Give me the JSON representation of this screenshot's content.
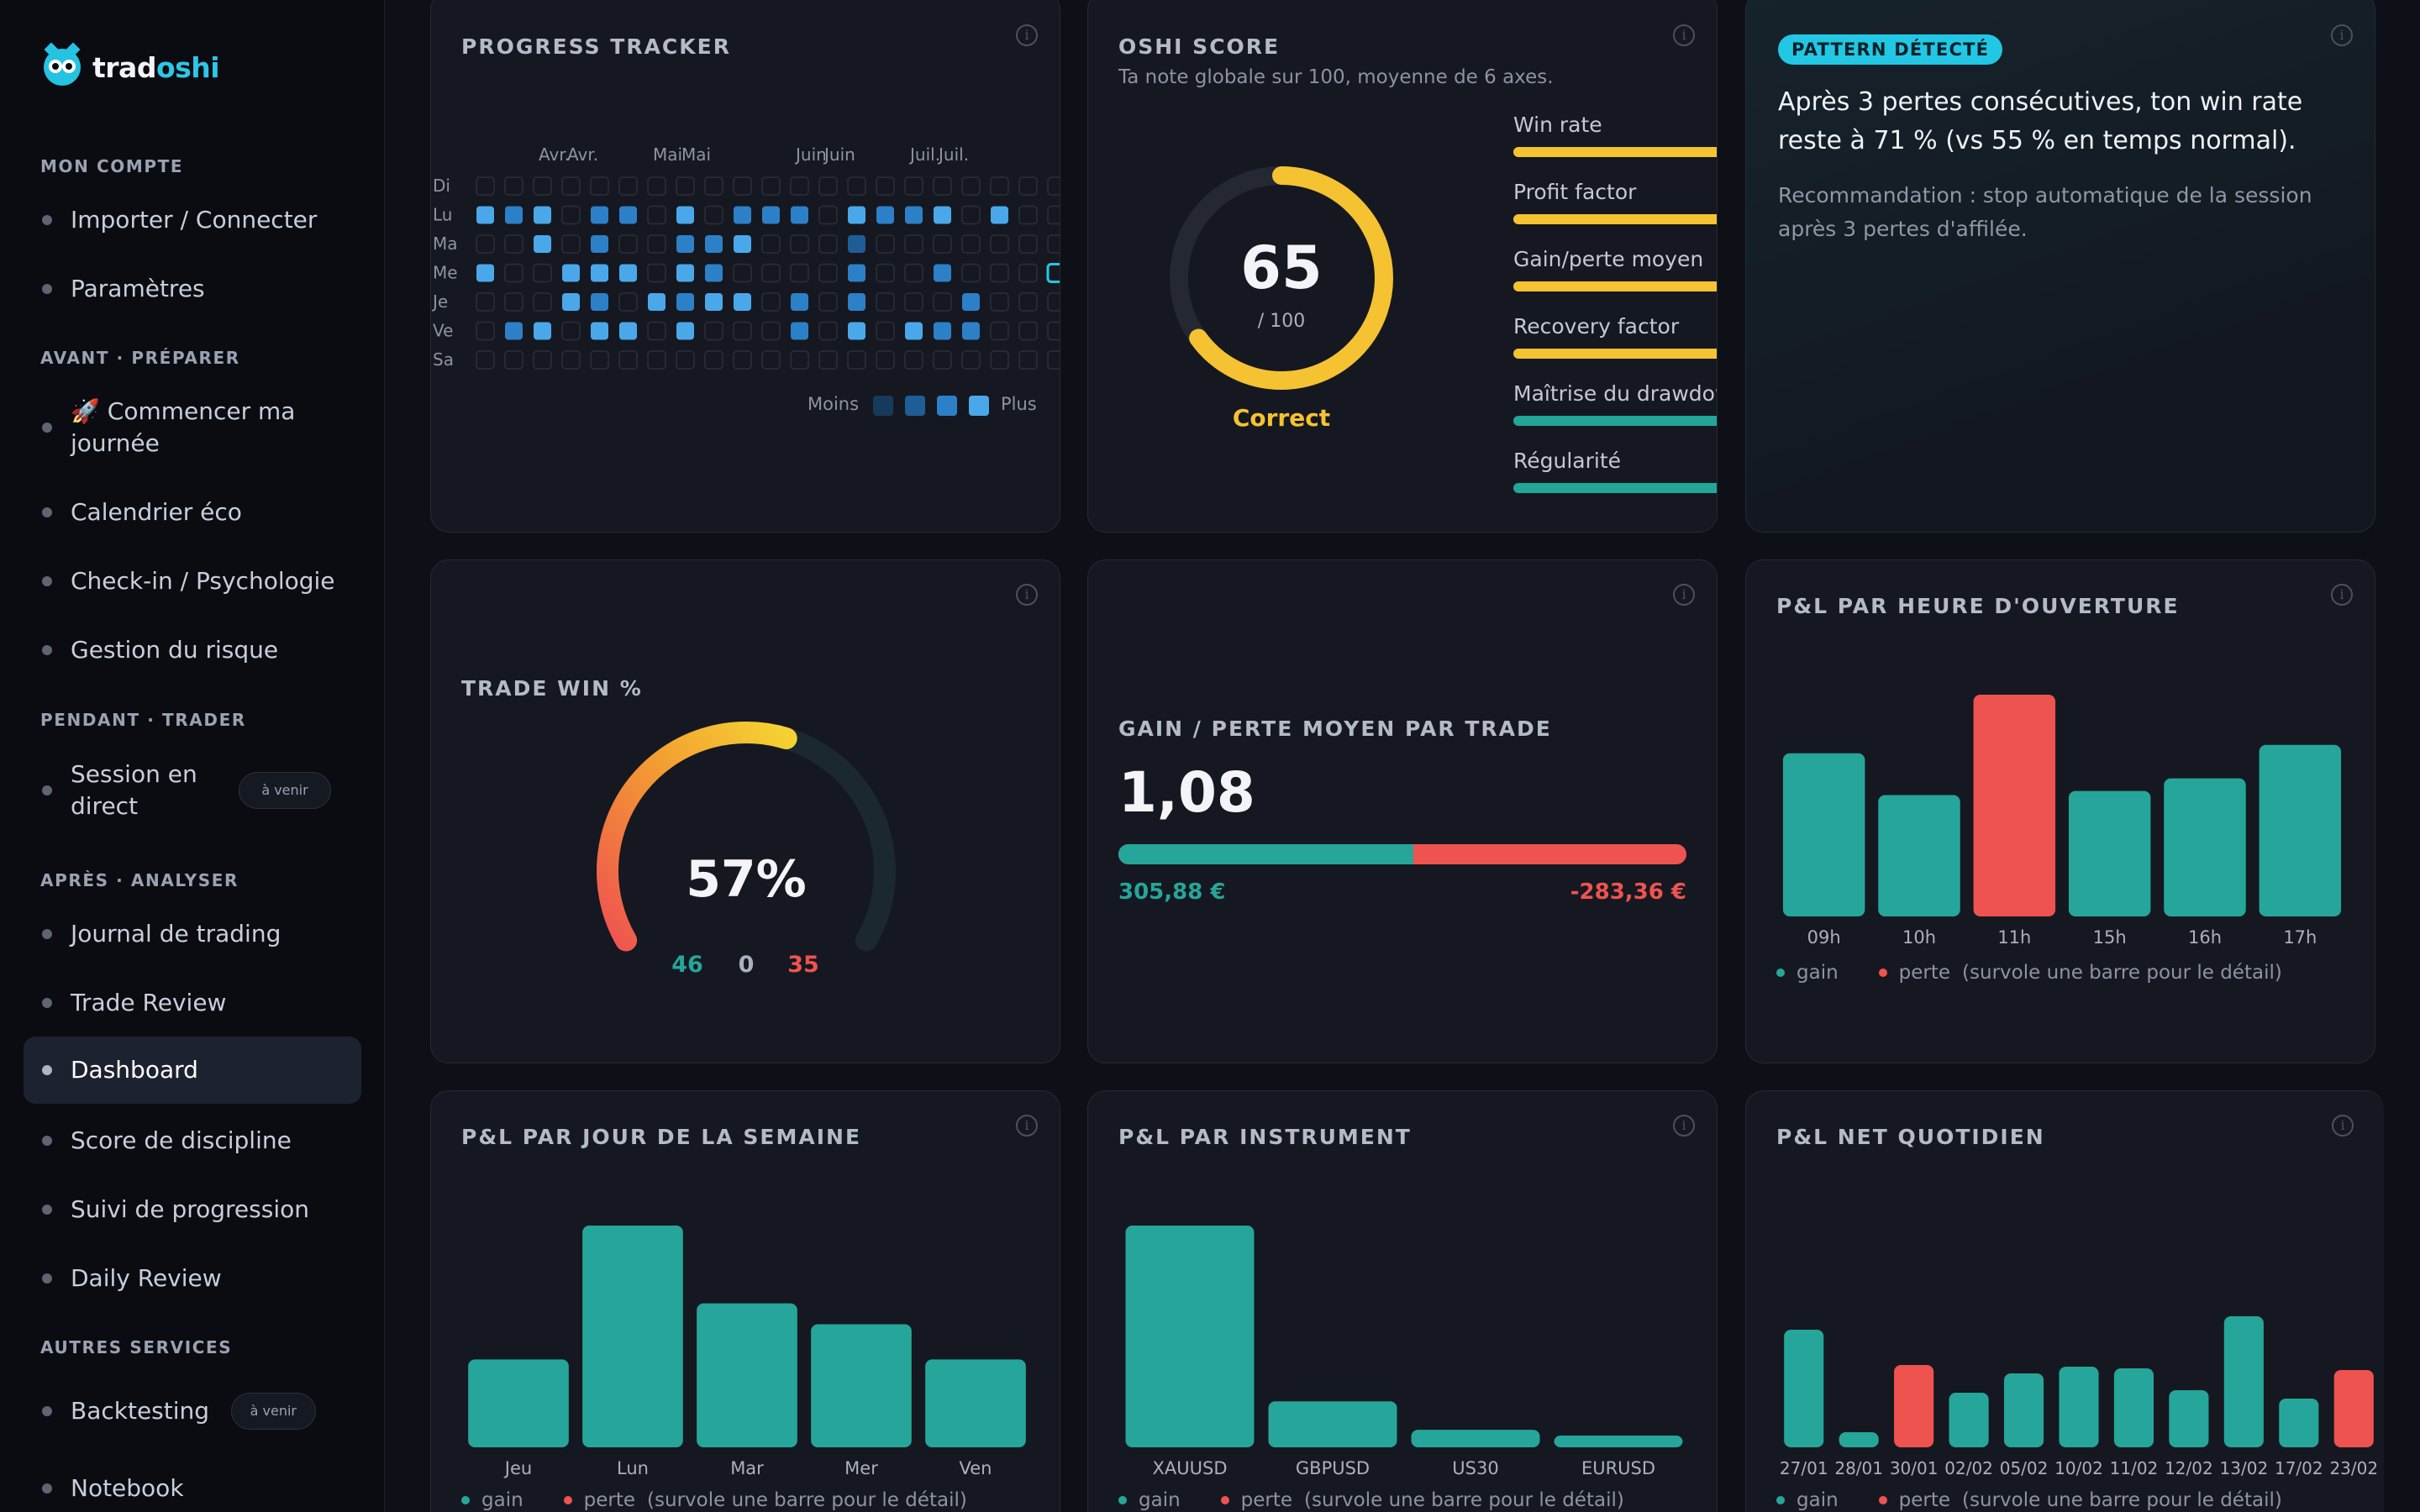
{
  "brand": {
    "name_part1": "trad",
    "name_part2": "oshi"
  },
  "sidebar": {
    "sections": [
      {
        "title": "MON COMPTE",
        "items": [
          {
            "label": "Importer / Connecter"
          },
          {
            "label": "Paramètres"
          }
        ]
      },
      {
        "title": "AVANT · PRÉPARER",
        "items": [
          {
            "label": "🚀 Commencer ma journée"
          },
          {
            "label": "Calendrier éco"
          },
          {
            "label": "Check-in / Psychologie"
          },
          {
            "label": "Gestion du risque"
          }
        ]
      },
      {
        "title": "PENDANT · TRADER",
        "items": [
          {
            "label": "Session en direct",
            "badge": "à venir"
          }
        ]
      },
      {
        "title": "APRÈS · ANALYSER",
        "items": [
          {
            "label": "Journal de trading"
          },
          {
            "label": "Trade Review"
          },
          {
            "label": "Dashboard",
            "active": true
          },
          {
            "label": "Score de discipline"
          },
          {
            "label": "Suivi de progression"
          },
          {
            "label": "Daily Review"
          }
        ]
      },
      {
        "title": "AUTRES SERVICES",
        "items": [
          {
            "label": "Backtesting",
            "badge": "à venir"
          },
          {
            "label": "Notebook"
          }
        ]
      }
    ]
  },
  "progress_tracker": {
    "title": "PROGRESS TRACKER",
    "months": [
      "Avr.",
      "Avr.",
      "Mai",
      "Mai",
      "Juin",
      "Juin",
      "Juil.",
      "Juil."
    ],
    "days": [
      "Di",
      "Lu",
      "Ma",
      "Me",
      "Je",
      "Ve",
      "Sa"
    ],
    "legend_less": "Moins",
    "legend_more": "Plus",
    "levels_by_day": [
      [
        0,
        0,
        0,
        0,
        0,
        0,
        0,
        0,
        0,
        0,
        0,
        0,
        0,
        0,
        0,
        0,
        0,
        0,
        0,
        0,
        0
      ],
      [
        4,
        3,
        4,
        0,
        3,
        3,
        0,
        4,
        0,
        3,
        3,
        3,
        0,
        4,
        3,
        3,
        4,
        0,
        4,
        0,
        0
      ],
      [
        0,
        0,
        4,
        0,
        3,
        0,
        0,
        3,
        3,
        4,
        0,
        0,
        0,
        2,
        0,
        0,
        0,
        0,
        0,
        0,
        0
      ],
      [
        4,
        0,
        0,
        4,
        4,
        4,
        0,
        4,
        3,
        0,
        0,
        0,
        0,
        3,
        0,
        0,
        3,
        0,
        0,
        0,
        5
      ],
      [
        0,
        0,
        0,
        4,
        3,
        0,
        4,
        3,
        4,
        4,
        0,
        3,
        0,
        3,
        0,
        0,
        0,
        3,
        0,
        0,
        0
      ],
      [
        0,
        3,
        4,
        0,
        4,
        4,
        0,
        4,
        0,
        0,
        0,
        3,
        0,
        4,
        0,
        4,
        3,
        3,
        0,
        0,
        0
      ],
      [
        0,
        0,
        0,
        0,
        0,
        0,
        0,
        0,
        0,
        0,
        0,
        0,
        0,
        0,
        0,
        0,
        0,
        0,
        0,
        0,
        0
      ]
    ]
  },
  "oshi_score": {
    "title": "OSHI SCORE",
    "subtitle": "Ta note globale sur 100, moyenne de 6 axes.",
    "score": 65,
    "score_text": "65",
    "out_of": "/ 100",
    "rating": "Correct",
    "axes": [
      {
        "label": "Win rate",
        "value": 57,
        "color": "#f5c232"
      },
      {
        "label": "Profit factor",
        "value": 54,
        "color": "#f5c232"
      },
      {
        "label": "Gain/perte moyen",
        "value": 54,
        "color": "#f5c232"
      },
      {
        "label": "Recovery factor",
        "value": 52,
        "color": "#f5c232"
      },
      {
        "label": "Maîtrise du drawdown",
        "value": 83,
        "color": "#22a698"
      },
      {
        "label": "Régularité",
        "value": 88,
        "color": "#22a698"
      }
    ]
  },
  "pattern": {
    "badge": "PATTERN DÉTECTÉ",
    "text": "Après 3 pertes consécutives, ton win rate reste à 71 % (vs 55 % en temps normal).",
    "recommendation": "Recommandation : stop automatique de la session après 3 pertes d'affilée."
  },
  "trade_win": {
    "title": "TRADE WIN %",
    "percent": 57,
    "percent_text": "57%",
    "wins": "46",
    "breakeven": "0",
    "losses": "35"
  },
  "gain_loss": {
    "title": "GAIN / PERTE MOYEN PAR TRADE",
    "ratio": "1,08",
    "avg_gain": "305,88 €",
    "avg_loss": "-283,36 €",
    "gain_value": 305.88,
    "loss_value": 283.36
  },
  "legend": {
    "gain": "gain",
    "loss": "perte",
    "hint": "(survole une barre pour le détail)"
  },
  "colors": {
    "gain": "#26a69a",
    "loss": "#ef5350",
    "accent": "#22c7e4",
    "yellow": "#f5c232"
  },
  "chart_data": [
    {
      "id": "pnl_hour",
      "type": "bar",
      "title": "P&L PAR HEURE D'OUVERTURE",
      "categories": [
        "09h",
        "10h",
        "11h",
        "15h",
        "16h",
        "17h"
      ],
      "values": [
        195,
        145,
        265,
        150,
        165,
        205
      ],
      "kinds": [
        "gain",
        "gain",
        "loss",
        "gain",
        "gain",
        "gain"
      ]
    },
    {
      "id": "pnl_weekday",
      "type": "bar",
      "title": "P&L PAR JOUR DE LA SEMAINE",
      "categories": [
        "Jeu",
        "Lun",
        "Mar",
        "Mer",
        "Ven"
      ],
      "values": [
        105,
        265,
        172,
        147,
        105
      ],
      "kinds": [
        "gain",
        "gain",
        "gain",
        "gain",
        "gain"
      ]
    },
    {
      "id": "pnl_instrument",
      "type": "bar",
      "title": "P&L PAR INSTRUMENT",
      "categories": [
        "XAUUSD",
        "GBPUSD",
        "US30",
        "EURUSD"
      ],
      "values": [
        265,
        55,
        21,
        14
      ],
      "kinds": [
        "gain",
        "gain",
        "gain",
        "gain"
      ]
    },
    {
      "id": "pnl_daily",
      "type": "bar",
      "title": "P&L NET QUOTIDIEN",
      "categories": [
        "27/01",
        "28/01",
        "30/01",
        "02/02",
        "05/02",
        "10/02",
        "11/02",
        "12/02",
        "13/02",
        "17/02",
        "23/02"
      ],
      "values": [
        140,
        18,
        98,
        65,
        88,
        96,
        94,
        68,
        156,
        58,
        92
      ],
      "kinds": [
        "gain",
        "gain",
        "loss",
        "gain",
        "gain",
        "gain",
        "gain",
        "gain",
        "gain",
        "gain",
        "loss"
      ]
    }
  ]
}
